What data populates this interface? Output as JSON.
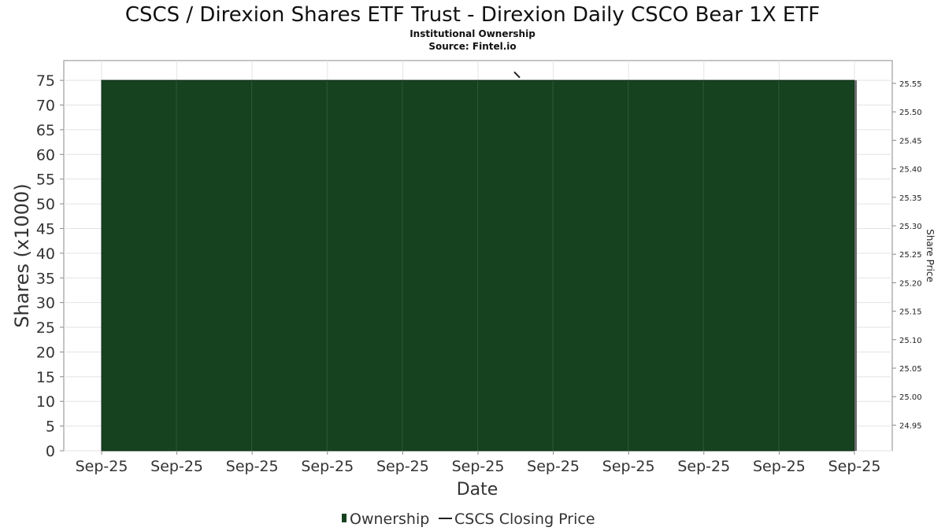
{
  "chart_data": {
    "type": "area",
    "title": "CSCS / Direxion Shares ETF Trust - Direxion Daily CSCO Bear 1X ETF",
    "subtitle": "Institutional Ownership",
    "source": "Source: Fintel.io",
    "xlabel": "Date",
    "ylabel": "Shares (x1000)",
    "y2label": "Share Price",
    "x_tick_labels": [
      "Sep-25",
      "Sep-25",
      "Sep-25",
      "Sep-25",
      "Sep-25",
      "Sep-25",
      "Sep-25",
      "Sep-25",
      "Sep-25",
      "Sep-25",
      "Sep-25"
    ],
    "y_ticks": [
      0,
      5,
      10,
      15,
      20,
      25,
      30,
      35,
      40,
      45,
      50,
      55,
      60,
      65,
      70,
      75
    ],
    "ylim": [
      0,
      79
    ],
    "y2_ticks": [
      24.95,
      25.0,
      25.05,
      25.1,
      25.15,
      25.2,
      25.25,
      25.3,
      25.35,
      25.4,
      25.45,
      25.5,
      25.55
    ],
    "y2_tick_labels": [
      "24.95",
      "25.00",
      "25.05",
      "25.10",
      "25.15",
      "25.20",
      "25.25",
      "25.30",
      "25.35",
      "25.40",
      "25.45",
      "25.50",
      "25.55"
    ],
    "y2lim": [
      24.905,
      25.59
    ],
    "series": [
      {
        "name": "Ownership",
        "kind": "area",
        "color": "#174220",
        "values": [
          75,
          75
        ]
      },
      {
        "name": "CSCS Closing Price",
        "kind": "line",
        "color": "#222222",
        "values": [
          25.57,
          25.56
        ]
      }
    ],
    "grid": true,
    "legend_position": "bottom-center"
  }
}
